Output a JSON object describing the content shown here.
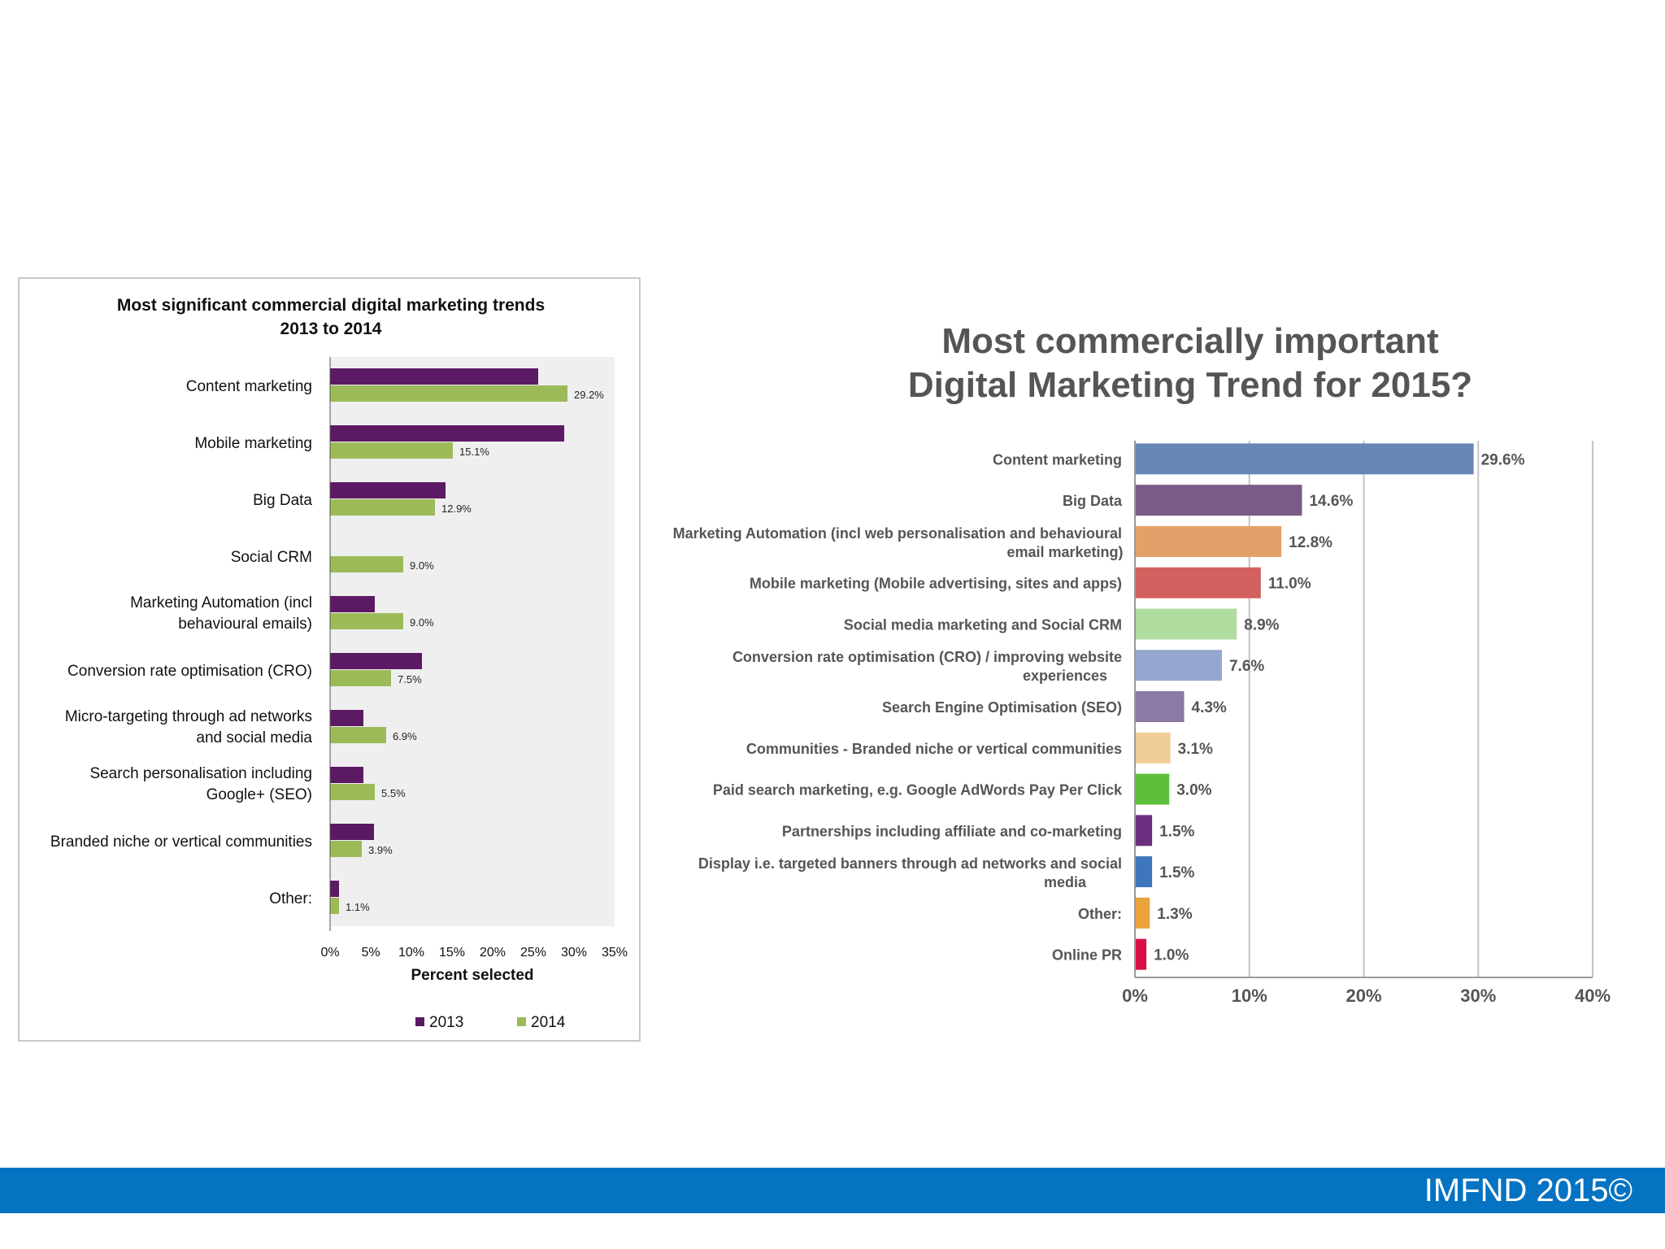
{
  "footer": {
    "text": "IMFND 2015©"
  },
  "colors": {
    "footer_bg": "#0573c2",
    "series_2013": "#5b1a63",
    "series_2014": "#9bbb59",
    "plot_bg": "#efefef"
  },
  "chart_data": [
    {
      "type": "bar",
      "orientation": "horizontal",
      "title_lines": [
        "Most significant commercial digital marketing trends",
        "2013 to 2014"
      ],
      "category_lines": [
        [
          "Content marketing"
        ],
        [
          "Mobile marketing"
        ],
        [
          "Big Data"
        ],
        [
          "Social CRM"
        ],
        [
          "Marketing Automation (incl",
          "behavioural emails)"
        ],
        [
          "Conversion rate optimisation (CRO)"
        ],
        [
          "Micro-targeting through ad networks",
          "and social media"
        ],
        [
          "Search personalisation including",
          "Google+ (SEO)"
        ],
        [
          "Branded niche or vertical communities"
        ],
        [
          "Other:"
        ]
      ],
      "series": [
        {
          "name": "2013",
          "color": "#5b1a63",
          "values": [
            25.6,
            28.8,
            14.2,
            0,
            5.5,
            11.3,
            4.1,
            4.1,
            5.4,
            1.1
          ]
        },
        {
          "name": "2014",
          "color": "#9bbb59",
          "values": [
            29.2,
            15.1,
            12.9,
            9.0,
            9.0,
            7.5,
            6.9,
            5.5,
            3.9,
            1.1
          ],
          "labels": [
            "29.2%",
            "15.1%",
            "12.9%",
            "9.0%",
            "9.0%",
            "7.5%",
            "6.9%",
            "5.5%",
            "3.9%",
            "1.1%"
          ]
        }
      ],
      "xlim": [
        0,
        35
      ],
      "xticks": [
        0,
        5,
        10,
        15,
        20,
        25,
        30,
        35
      ],
      "xtick_labels": [
        "0%",
        "5%",
        "10%",
        "15%",
        "20%",
        "25%",
        "30%",
        "35%"
      ],
      "xlabel": "Percent selected",
      "legend": [
        "2013",
        "2014"
      ],
      "legend_position": "bottom"
    },
    {
      "type": "bar",
      "orientation": "horizontal",
      "title_lines": [
        "Most commercially important",
        "Digital Marketing Trend for 2015?"
      ],
      "category_lines": [
        [
          "Content marketing"
        ],
        [
          "Big Data"
        ],
        [
          "Marketing Automation (incl web personalisation and behavioural",
          "email marketing)"
        ],
        [
          "Mobile marketing (Mobile advertising, sites and apps)"
        ],
        [
          "Social media marketing and Social CRM"
        ],
        [
          "Conversion rate optimisation (CRO) / improving website",
          "experiences"
        ],
        [
          "Search Engine Optimisation (SEO)"
        ],
        [
          "Communities - Branded niche or vertical communities"
        ],
        [
          "Paid search marketing, e.g. Google AdWords Pay Per Click"
        ],
        [
          "Partnerships including affiliate and co-marketing"
        ],
        [
          "Display i.e. targeted banners through ad networks and social",
          "media"
        ],
        [
          "Other:"
        ],
        [
          "Online PR"
        ]
      ],
      "values": [
        29.6,
        14.6,
        12.8,
        11.0,
        8.9,
        7.6,
        4.3,
        3.1,
        3.0,
        1.5,
        1.5,
        1.3,
        1.0
      ],
      "value_labels": [
        "29.6%",
        "14.6%",
        "12.8%",
        "11.0%",
        "8.9%",
        "7.6%",
        "4.3%",
        "3.1%",
        "3.0%",
        "1.5%",
        "1.5%",
        "1.3%",
        "1.0%"
      ],
      "bar_colors": [
        "#6787b7",
        "#7b5b85",
        "#e3a16a",
        "#d2605f",
        "#b1dca0",
        "#96a7cf",
        "#8b7aa5",
        "#f0cd98",
        "#5dbf3c",
        "#6b2f7f",
        "#3f75bd",
        "#e9a33a",
        "#d90f43"
      ],
      "xlim": [
        0,
        40
      ],
      "xticks": [
        0,
        10,
        20,
        30,
        40
      ],
      "xtick_labels": [
        "0%",
        "10%",
        "20%",
        "30%",
        "40%"
      ],
      "grid": true
    }
  ]
}
